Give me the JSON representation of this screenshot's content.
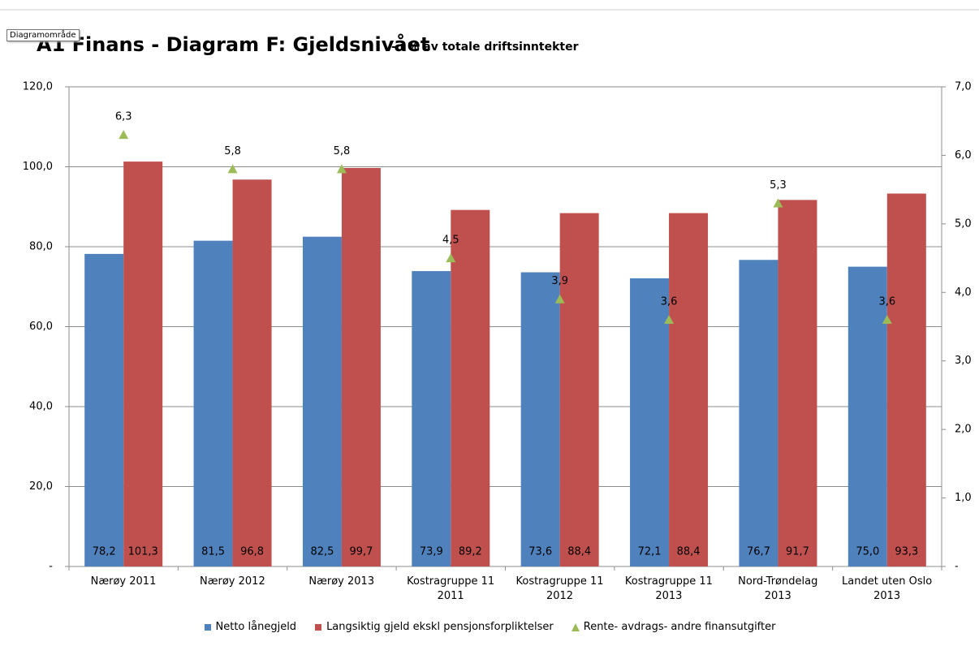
{
  "tooltip": "Diagramområde",
  "chart_data": {
    "type": "bar",
    "title": "A1 Finans - Diagram F: Gjeldsnivået",
    "subtitle": "- i % av totale driftsinntekter",
    "categories": [
      "Nærøy 2011",
      "Nærøy 2012",
      "Nærøy 2013",
      "Kostragruppe 11\n2011",
      "Kostragruppe 11\n2012",
      "Kostragruppe 11\n2013",
      "Nord-Trøndelag\n2013",
      "Landet uten Oslo\n2013"
    ],
    "series": [
      {
        "name": "Netto lånegjeld",
        "color": "#4f81bd",
        "type": "bar",
        "values": [
          78.2,
          81.5,
          82.5,
          73.9,
          73.6,
          72.1,
          76.7,
          75.0
        ],
        "value_labels": [
          "78,2",
          "81,5",
          "82,5",
          "73,9",
          "73,6",
          "72,1",
          "76,7",
          "75,0"
        ]
      },
      {
        "name": "Langsiktig gjeld ekskl pensjonsforpliktelser",
        "color": "#c0504d",
        "type": "bar",
        "values": [
          101.3,
          96.8,
          99.7,
          89.2,
          88.4,
          88.4,
          91.7,
          93.3
        ],
        "value_labels": [
          "101,3",
          "96,8",
          "99,7",
          "89,2",
          "88,4",
          "88,4",
          "91,7",
          "93,3"
        ]
      },
      {
        "name": "Rente- avdrags- andre finansutgifter",
        "color": "#9bbb59",
        "type": "scatter",
        "axis": "y2",
        "values": [
          6.3,
          5.8,
          5.8,
          4.5,
          3.9,
          3.6,
          5.3,
          3.6
        ],
        "value_labels": [
          "6,3",
          "5,8",
          "5,8",
          "4,5",
          "3,9",
          "3,6",
          "5,3",
          "3,6"
        ]
      }
    ],
    "ylim": [
      0,
      120
    ],
    "yticks": [
      {
        "value": 0,
        "label": "-"
      },
      {
        "value": 20,
        "label": "20,0"
      },
      {
        "value": 40,
        "label": "40,0"
      },
      {
        "value": 60,
        "label": "60,0"
      },
      {
        "value": 80,
        "label": "80,0"
      },
      {
        "value": 100,
        "label": "100,0"
      },
      {
        "value": 120,
        "label": "120,0"
      }
    ],
    "y2lim": [
      0,
      7
    ],
    "y2ticks": [
      {
        "value": 0,
        "label": "-"
      },
      {
        "value": 1,
        "label": "1,0"
      },
      {
        "value": 2,
        "label": "2,0"
      },
      {
        "value": 3,
        "label": "3,0"
      },
      {
        "value": 4,
        "label": "4,0"
      },
      {
        "value": 5,
        "label": "5,0"
      },
      {
        "value": 6,
        "label": "6,0"
      },
      {
        "value": 7,
        "label": "7,0"
      }
    ],
    "grid": true,
    "legend": "bottom"
  }
}
